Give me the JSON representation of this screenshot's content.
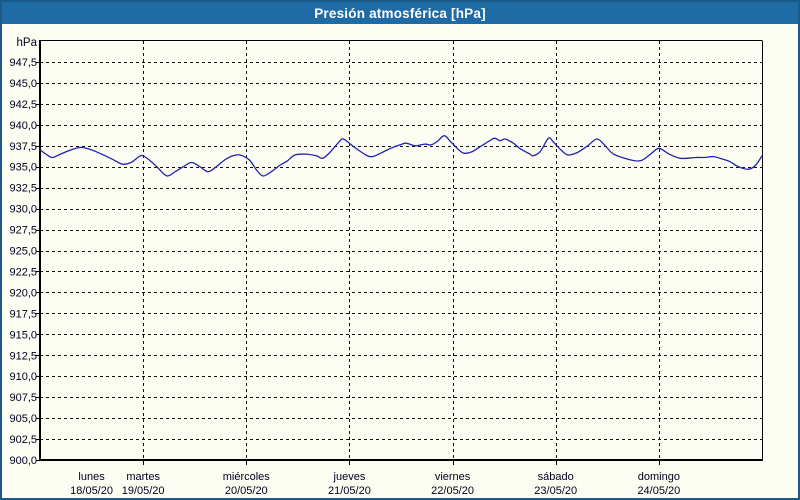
{
  "window": {
    "title": "Presión atmosférica [hPa]"
  },
  "colors": {
    "titlebar_bg": "#1e6ba6",
    "titlebar_text": "#ffffff",
    "window_border": "#1a5a8a",
    "background": "#fcfdf3",
    "grid": "#111111",
    "axis": "#000000",
    "tick_text": "#00001e",
    "line": "#2222b0"
  },
  "chart_data": {
    "type": "line",
    "title": "Presión atmosférica [hPa]",
    "xlabel": "",
    "ylabel": "hPa",
    "ylim": [
      900,
      950
    ],
    "xlim_days": [
      0,
      7
    ],
    "grid": "dashed",
    "legend": "none",
    "y_tick_step": 2.5,
    "y_ticks": [
      {
        "value": 947.5,
        "label": "947,5"
      },
      {
        "value": 945.0,
        "label": "945,0"
      },
      {
        "value": 942.5,
        "label": "942,5"
      },
      {
        "value": 940.0,
        "label": "940,0"
      },
      {
        "value": 937.5,
        "label": "937,5"
      },
      {
        "value": 935.0,
        "label": "935,0"
      },
      {
        "value": 932.5,
        "label": "932,5"
      },
      {
        "value": 930.0,
        "label": "930,0"
      },
      {
        "value": 927.5,
        "label": "927,5"
      },
      {
        "value": 925.0,
        "label": "925,0"
      },
      {
        "value": 922.5,
        "label": "922,5"
      },
      {
        "value": 920.0,
        "label": "920,0"
      },
      {
        "value": 917.5,
        "label": "917,5"
      },
      {
        "value": 915.0,
        "label": "915,0"
      },
      {
        "value": 912.5,
        "label": "912,5"
      },
      {
        "value": 910.0,
        "label": "910,0"
      },
      {
        "value": 907.5,
        "label": "907,5"
      },
      {
        "value": 905.0,
        "label": "905,0"
      },
      {
        "value": 902.5,
        "label": "902,5"
      },
      {
        "value": 900.0,
        "label": "900,0"
      }
    ],
    "x_ticks": [
      {
        "day_index": 0,
        "day": "lunes",
        "date": "18/05/20"
      },
      {
        "day_index": 1,
        "day": "martes",
        "date": "19/05/20"
      },
      {
        "day_index": 2,
        "day": "miércoles",
        "date": "20/05/20"
      },
      {
        "day_index": 3,
        "day": "jueves",
        "date": "21/05/20"
      },
      {
        "day_index": 4,
        "day": "viernes",
        "date": "22/05/20"
      },
      {
        "day_index": 5,
        "day": "sábado",
        "date": "23/05/20"
      },
      {
        "day_index": 6,
        "day": "domingo",
        "date": "24/05/20"
      }
    ],
    "series": [
      {
        "name": "Presión atmosférica [hPa]",
        "color": "#2222b0",
        "unit": "hPa",
        "points_days_hpa": [
          [
            0.0,
            937.0
          ],
          [
            0.07,
            936.4
          ],
          [
            0.12,
            936.1
          ],
          [
            0.2,
            936.5
          ],
          [
            0.3,
            937.0
          ],
          [
            0.4,
            937.3
          ],
          [
            0.5,
            937.0
          ],
          [
            0.58,
            936.6
          ],
          [
            0.7,
            935.9
          ],
          [
            0.8,
            935.3
          ],
          [
            0.88,
            935.5
          ],
          [
            0.96,
            936.2
          ],
          [
            1.0,
            936.3
          ],
          [
            1.08,
            935.6
          ],
          [
            1.14,
            934.9
          ],
          [
            1.23,
            933.9
          ],
          [
            1.31,
            934.4
          ],
          [
            1.39,
            935.0
          ],
          [
            1.47,
            935.5
          ],
          [
            1.55,
            935.0
          ],
          [
            1.63,
            934.4
          ],
          [
            1.71,
            935.0
          ],
          [
            1.79,
            935.8
          ],
          [
            1.87,
            936.3
          ],
          [
            1.94,
            936.4
          ],
          [
            2.03,
            935.8
          ],
          [
            2.1,
            934.6
          ],
          [
            2.16,
            933.9
          ],
          [
            2.23,
            934.3
          ],
          [
            2.33,
            935.2
          ],
          [
            2.4,
            935.7
          ],
          [
            2.47,
            936.4
          ],
          [
            2.58,
            936.5
          ],
          [
            2.68,
            936.3
          ],
          [
            2.74,
            936.0
          ],
          [
            2.81,
            936.7
          ],
          [
            2.91,
            938.1
          ],
          [
            2.94,
            938.3
          ],
          [
            2.99,
            937.9
          ],
          [
            3.05,
            937.3
          ],
          [
            3.16,
            936.4
          ],
          [
            3.22,
            936.2
          ],
          [
            3.3,
            936.6
          ],
          [
            3.4,
            937.2
          ],
          [
            3.49,
            937.6
          ],
          [
            3.55,
            937.8
          ],
          [
            3.64,
            937.5
          ],
          [
            3.73,
            937.7
          ],
          [
            3.79,
            937.6
          ],
          [
            3.85,
            938.0
          ],
          [
            3.92,
            938.7
          ],
          [
            3.98,
            938.0
          ],
          [
            4.07,
            936.9
          ],
          [
            4.12,
            936.6
          ],
          [
            4.19,
            936.8
          ],
          [
            4.27,
            937.4
          ],
          [
            4.36,
            938.1
          ],
          [
            4.41,
            938.4
          ],
          [
            4.46,
            938.1
          ],
          [
            4.51,
            938.3
          ],
          [
            4.59,
            937.8
          ],
          [
            4.65,
            937.2
          ],
          [
            4.75,
            936.5
          ],
          [
            4.78,
            936.3
          ],
          [
            4.85,
            936.8
          ],
          [
            4.93,
            938.4
          ],
          [
            4.98,
            937.9
          ],
          [
            5.06,
            936.9
          ],
          [
            5.12,
            936.4
          ],
          [
            5.21,
            936.7
          ],
          [
            5.31,
            937.5
          ],
          [
            5.4,
            938.3
          ],
          [
            5.48,
            937.5
          ],
          [
            5.56,
            936.5
          ],
          [
            5.7,
            935.9
          ],
          [
            5.82,
            935.7
          ],
          [
            5.92,
            936.5
          ],
          [
            6.0,
            937.2
          ],
          [
            6.1,
            936.5
          ],
          [
            6.21,
            936.0
          ],
          [
            6.36,
            936.1
          ],
          [
            6.45,
            936.1
          ],
          [
            6.53,
            936.2
          ],
          [
            6.62,
            935.9
          ],
          [
            6.69,
            935.6
          ],
          [
            6.77,
            935.0
          ],
          [
            6.87,
            934.7
          ],
          [
            6.94,
            935.2
          ],
          [
            7.0,
            936.3
          ]
        ]
      }
    ]
  }
}
